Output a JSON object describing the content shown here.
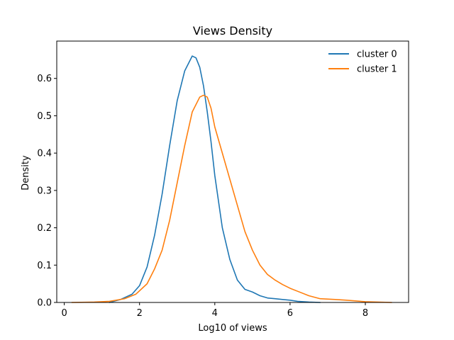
{
  "chart_data": {
    "type": "line",
    "title": "Views Density",
    "xlabel": "Log10 of views",
    "ylabel": "Density",
    "xlim": [
      -0.2,
      9.15
    ],
    "ylim": [
      0,
      0.7
    ],
    "xticks": [
      0,
      2,
      4,
      6,
      8
    ],
    "yticks": [
      0.0,
      0.1,
      0.2,
      0.3,
      0.4,
      0.5,
      0.6
    ],
    "grid": false,
    "legend_position": "upper right",
    "series": [
      {
        "name": "cluster 0",
        "color": "#1f77b4",
        "x": [
          1.2,
          1.5,
          1.8,
          2.0,
          2.2,
          2.4,
          2.6,
          2.8,
          3.0,
          3.2,
          3.4,
          3.5,
          3.6,
          3.7,
          3.8,
          3.9,
          4.0,
          4.2,
          4.4,
          4.6,
          4.8,
          5.0,
          5.2,
          5.4,
          5.6,
          5.8,
          6.0,
          6.2,
          6.5,
          6.8
        ],
        "y": [
          0.0,
          0.008,
          0.022,
          0.045,
          0.095,
          0.18,
          0.29,
          0.42,
          0.54,
          0.62,
          0.66,
          0.655,
          0.63,
          0.58,
          0.51,
          0.43,
          0.34,
          0.2,
          0.115,
          0.06,
          0.035,
          0.028,
          0.018,
          0.012,
          0.01,
          0.008,
          0.006,
          0.003,
          0.001,
          0.0
        ]
      },
      {
        "name": "cluster 1",
        "color": "#ff7f0e",
        "x": [
          0.2,
          0.8,
          1.2,
          1.6,
          1.9,
          2.2,
          2.4,
          2.6,
          2.8,
          3.0,
          3.2,
          3.4,
          3.6,
          3.7,
          3.8,
          3.9,
          4.0,
          4.2,
          4.4,
          4.6,
          4.8,
          5.0,
          5.2,
          5.4,
          5.6,
          5.8,
          6.0,
          6.2,
          6.5,
          6.8,
          7.2,
          7.5,
          8.0,
          8.7
        ],
        "y": [
          0.0,
          0.001,
          0.003,
          0.01,
          0.022,
          0.05,
          0.09,
          0.14,
          0.22,
          0.32,
          0.42,
          0.51,
          0.55,
          0.555,
          0.55,
          0.52,
          0.47,
          0.4,
          0.33,
          0.26,
          0.19,
          0.14,
          0.1,
          0.075,
          0.06,
          0.048,
          0.038,
          0.03,
          0.018,
          0.01,
          0.008,
          0.006,
          0.002,
          0.0
        ]
      }
    ]
  }
}
